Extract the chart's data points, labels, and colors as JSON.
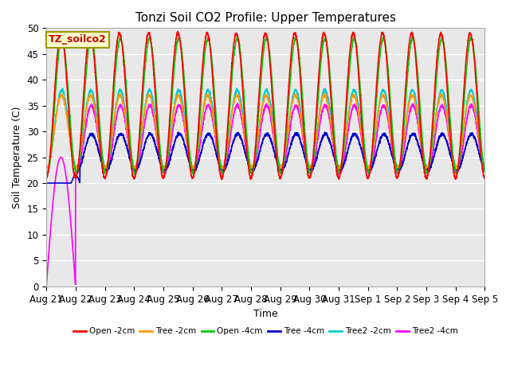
{
  "title": "Tonzi Soil CO2 Profile: Upper Temperatures",
  "xlabel": "Time",
  "ylabel": "Soil Temperature (C)",
  "ylim": [
    0,
    50
  ],
  "annotation_text": "TZ_soilco2",
  "annotation_color": "#cc0000",
  "annotation_bg": "#ffffcc",
  "annotation_border": "#999900",
  "plot_bg_color": "#e8e8e8",
  "series": [
    {
      "label": "Open -2cm",
      "color": "#ff0000"
    },
    {
      "label": "Tree -2cm",
      "color": "#ff9900"
    },
    {
      "label": "Open -4cm",
      "color": "#00cc00"
    },
    {
      "label": "Tree -4cm",
      "color": "#0000cc"
    },
    {
      "label": "Tree2 -2cm",
      "color": "#00cccc"
    },
    {
      "label": "Tree2 -4cm",
      "color": "#ff00ff"
    }
  ],
  "tick_labels": [
    "Aug 21",
    "Aug 22",
    "Aug 23",
    "Aug 24",
    "Aug 25",
    "Aug 26",
    "Aug 27",
    "Aug 28",
    "Aug 29",
    "Aug 30",
    "Aug 31",
    "Sep 1",
    "Sep 2",
    "Sep 3",
    "Sep 4",
    "Sep 5"
  ],
  "n_ticks": 16,
  "num_days": 15,
  "series_params": [
    {
      "mean": 35.0,
      "amp": 14.0,
      "phase_shift": 0.0,
      "label": "Open -2cm"
    },
    {
      "mean": 30.0,
      "amp": 7.0,
      "phase_shift": 0.1,
      "label": "Tree -2cm"
    },
    {
      "mean": 35.0,
      "amp": 13.0,
      "phase_shift": 0.2,
      "label": "Open -4cm"
    },
    {
      "mean": 26.0,
      "amp": 3.5,
      "phase_shift": 0.3,
      "label": "Tree -4cm"
    },
    {
      "mean": 30.5,
      "amp": 7.5,
      "phase_shift": 0.18,
      "label": "Tree2 -2cm"
    },
    {
      "mean": 28.5,
      "amp": 6.5,
      "phase_shift": 0.22,
      "label": "Tree2 -4cm"
    }
  ]
}
